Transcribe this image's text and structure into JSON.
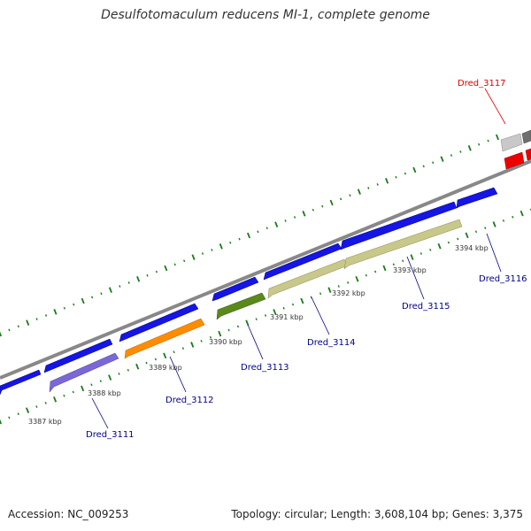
{
  "title": "Desulfotomaculum reducens MI-1, complete genome",
  "footer": {
    "accession": "Accession: NC_009253",
    "summary": "Topology: circular; Length: 3,608,104 bp; Genes: 3,375"
  },
  "colors": {
    "backbone": "#888888",
    "tick": "#1a7a1a",
    "forward_gene": "#1515e6",
    "label_default": "#00008b",
    "label_highlight": "#dd0000"
  },
  "scale_ticks": [
    "3387 kbp",
    "3388 kbp",
    "3389 kbp",
    "3390 kbp",
    "3391 kbp",
    "3392 kbp",
    "3393 kbp",
    "3394 kbp"
  ],
  "gene_labels": [
    {
      "id": "g3111",
      "text": "Dred_3111",
      "color": "#00008b"
    },
    {
      "id": "g3112",
      "text": "Dred_3112",
      "color": "#00008b"
    },
    {
      "id": "g3113",
      "text": "Dred_3113",
      "color": "#00008b"
    },
    {
      "id": "g3114",
      "text": "Dred_3114",
      "color": "#00008b"
    },
    {
      "id": "g3115",
      "text": "Dred_3115",
      "color": "#00008b"
    },
    {
      "id": "g3116",
      "text": "Dred_3116",
      "color": "#00008b"
    },
    {
      "id": "g3117",
      "text": "Dred_3117",
      "color": "#dd0000"
    }
  ]
}
